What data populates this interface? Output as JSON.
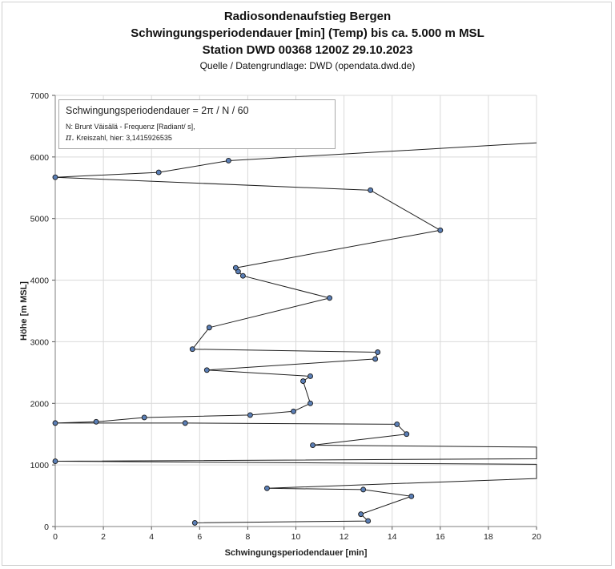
{
  "chart_data": {
    "type": "line",
    "title": "Radiosondenaufstieg Bergen",
    "subtitle_line2": "Schwingungsperiodendauer [min] (Temp) bis ca. 5.000 m MSL",
    "subtitle_line3": "Station DWD 00368 1200Z 29.10.2023",
    "source": "Quelle / Datengrundlage: DWD (opendata.dwd.de)",
    "xlabel": "Schwingungsperiodendauer [min]",
    "ylabel": "Höhe [m MSL]",
    "xlim": [
      0,
      20
    ],
    "ylim": [
      0,
      7000
    ],
    "x_ticks": [
      "0",
      "2",
      "4",
      "6",
      "8",
      "10",
      "12",
      "14",
      "16",
      "18",
      "20"
    ],
    "y_ticks": [
      "0",
      "1000",
      "2000",
      "3000",
      "4000",
      "5000",
      "6000",
      "7000"
    ],
    "grid": true,
    "annotation": {
      "line1": "Schwingungsperiodendauer = 2π / N / 60",
      "line2": "N: Brunt Väisälä - Frequenz [Radiant/ s],",
      "line3_symbol": "π.",
      "line3": "Kreiszahl, hier: 3,1415926535"
    },
    "series": [
      {
        "color": "#1f1f1f",
        "marker_color": "#5b7fb6",
        "points": [
          {
            "x": 5.8,
            "y": 60,
            "marker": true
          },
          {
            "x": 13.0,
            "y": 90,
            "marker": true
          },
          {
            "x": 12.7,
            "y": 200,
            "marker": true
          },
          {
            "x": 14.8,
            "y": 490,
            "marker": true
          },
          {
            "x": 12.8,
            "y": 600,
            "marker": true
          },
          {
            "x": 8.8,
            "y": 620,
            "marker": true
          },
          {
            "x": 20.0,
            "y": 780,
            "marker": false
          },
          {
            "x": 20.0,
            "y": 1010,
            "marker": false
          },
          {
            "x": 0.0,
            "y": 1060,
            "marker": true
          },
          {
            "x": 20.0,
            "y": 1100,
            "marker": false
          },
          {
            "x": 20.0,
            "y": 1290,
            "marker": false
          },
          {
            "x": 10.7,
            "y": 1320,
            "marker": true
          },
          {
            "x": 14.6,
            "y": 1500,
            "marker": true
          },
          {
            "x": 14.2,
            "y": 1660,
            "marker": true
          },
          {
            "x": 5.4,
            "y": 1680,
            "marker": true
          },
          {
            "x": 0.0,
            "y": 1680,
            "marker": true
          },
          {
            "x": 1.7,
            "y": 1700,
            "marker": true
          },
          {
            "x": 3.7,
            "y": 1770,
            "marker": true
          },
          {
            "x": 8.1,
            "y": 1810,
            "marker": true
          },
          {
            "x": 9.9,
            "y": 1870,
            "marker": true
          },
          {
            "x": 10.6,
            "y": 2000,
            "marker": true
          },
          {
            "x": 10.3,
            "y": 2360,
            "marker": true
          },
          {
            "x": 10.6,
            "y": 2440,
            "marker": true
          },
          {
            "x": 6.3,
            "y": 2540,
            "marker": true
          },
          {
            "x": 13.3,
            "y": 2720,
            "marker": true
          },
          {
            "x": 13.4,
            "y": 2830,
            "marker": true
          },
          {
            "x": 5.7,
            "y": 2880,
            "marker": true
          },
          {
            "x": 6.4,
            "y": 3230,
            "marker": true
          },
          {
            "x": 11.4,
            "y": 3710,
            "marker": true
          },
          {
            "x": 7.8,
            "y": 4070,
            "marker": true
          },
          {
            "x": 7.6,
            "y": 4140,
            "marker": true
          },
          {
            "x": 7.5,
            "y": 4200,
            "marker": true
          },
          {
            "x": 16.0,
            "y": 4810,
            "marker": true
          },
          {
            "x": 13.1,
            "y": 5460,
            "marker": true
          },
          {
            "x": 0.0,
            "y": 5670,
            "marker": true
          },
          {
            "x": 4.3,
            "y": 5750,
            "marker": true
          },
          {
            "x": 7.2,
            "y": 5940,
            "marker": true
          },
          {
            "x": 20.0,
            "y": 6230,
            "marker": false
          }
        ]
      }
    ]
  }
}
